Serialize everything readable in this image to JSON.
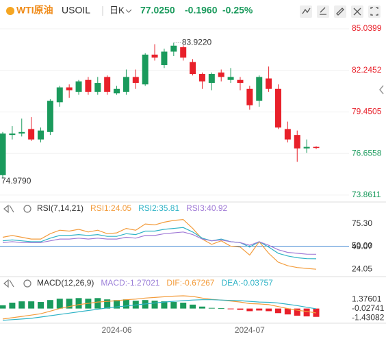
{
  "header": {
    "symbol_name": "WTI原油",
    "symbol": "USOIL",
    "period": "日K",
    "price": "77.0250",
    "change": "-0.1960",
    "change_pct": "-0.25%"
  },
  "chart_data": [
    {
      "type": "candlestick",
      "categories": [
        null,
        null,
        null,
        null,
        null,
        null,
        null,
        null,
        null,
        null,
        null,
        null,
        "2024-06",
        null,
        null,
        null,
        null,
        null,
        null,
        null,
        null,
        null,
        null,
        null,
        null,
        null,
        "2024-07",
        null,
        null,
        null,
        null,
        null,
        null,
        null
      ],
      "open": [
        75.2,
        77.9,
        78.0,
        78.3,
        77.6,
        78.1,
        80.1,
        81.1,
        80.8,
        81.6,
        80.8,
        81.8,
        80.7,
        80.8,
        81.8,
        81.3,
        83.3,
        82.6,
        83.5,
        83.8,
        82.8,
        82.0,
        81.4,
        82.1,
        81.6,
        81.6,
        81.0,
        80.2,
        81.7,
        81.0,
        78.3,
        77.9,
        77.0,
        77.1
      ],
      "high": [
        78.1,
        78.5,
        79.0,
        79.1,
        78.4,
        80.3,
        81.2,
        81.3,
        81.6,
        81.8,
        81.8,
        81.9,
        81.2,
        82.3,
        82.3,
        83.4,
        84.0,
        83.7,
        84.1,
        83.922,
        83.0,
        82.1,
        82.1,
        82.3,
        82.4,
        81.8,
        81.2,
        81.9,
        82.5,
        81.3,
        78.8,
        78.2,
        77.6,
        77.15
      ],
      "low": [
        74.979,
        77.6,
        77.8,
        77.5,
        77.4,
        77.9,
        79.8,
        80.4,
        80.6,
        80.6,
        80.6,
        80.6,
        80.6,
        80.6,
        81.0,
        81.2,
        82.9,
        82.4,
        83.2,
        82.9,
        81.9,
        81.0,
        80.9,
        81.5,
        81.4,
        80.9,
        79.6,
        79.8,
        80.8,
        78.3,
        77.4,
        76.1,
        76.7,
        76.95
      ],
      "close": [
        78.0,
        78.0,
        78.1,
        77.6,
        78.2,
        80.2,
        81.1,
        80.9,
        81.5,
        80.8,
        81.4,
        80.8,
        81.0,
        81.8,
        81.4,
        83.3,
        83.1,
        83.5,
        83.9,
        83.1,
        82.0,
        81.5,
        82.0,
        81.8,
        81.8,
        81.4,
        79.9,
        81.8,
        81.0,
        78.4,
        77.6,
        77.0,
        77.1,
        77.025
      ],
      "high_label": "83.9220",
      "low_label": "74.9790",
      "up_color": "#1a9a5c",
      "down_color": "#e8202a",
      "ylim": [
        73.49,
        85.59
      ],
      "yticks": [
        85.0399,
        82.2452,
        79.4505,
        76.6558,
        73.8611
      ],
      "grid": true
    },
    {
      "type": "line",
      "title": "RSI(7,14,21)",
      "series": [
        {
          "name": "RSI1:24.05",
          "color": "#f39c3c",
          "values": [
            60,
            62,
            60,
            58,
            58,
            64,
            68,
            67,
            69,
            66,
            68,
            64,
            65,
            70,
            68,
            75,
            74,
            77,
            79,
            80,
            70,
            58,
            52,
            56,
            50,
            49,
            40,
            55,
            42,
            32,
            28,
            26,
            25,
            24.05
          ]
        },
        {
          "name": "RSI2:35.81",
          "color": "#2fb3c6",
          "values": [
            56,
            57,
            56,
            55,
            55,
            59,
            62,
            62,
            63,
            62,
            63,
            61,
            61,
            64,
            63,
            67,
            67,
            69,
            70,
            71,
            66,
            59,
            56,
            58,
            55,
            54,
            49,
            55,
            49,
            42,
            39,
            37,
            36,
            35.81
          ]
        },
        {
          "name": "RSI3:40.92",
          "color": "#a07ad6",
          "values": [
            54,
            55,
            54,
            54,
            54,
            56,
            58,
            58,
            59,
            58,
            59,
            58,
            58,
            60,
            59,
            62,
            62,
            64,
            65,
            66,
            63,
            58,
            56,
            57,
            55,
            54,
            51,
            55,
            51,
            46,
            43,
            42,
            41,
            40.92
          ]
        }
      ],
      "ylim": [
        16.5,
        84.3
      ],
      "yticks": [
        {
          "value": 75.3,
          "label": "75.30"
        },
        {
          "value": 50,
          "label": "50.00"
        },
        49.07,
        24.05
      ],
      "reference_line": 50,
      "reference_color": "#3d86d1"
    },
    {
      "type": "macd",
      "title": "MACD(12,26,9)",
      "series": [
        {
          "name": "MACD:-1.27021",
          "color": "#9b7fd8",
          "values": [
            0.5,
            0.9,
            1.1,
            1.1,
            1.0,
            1.3,
            1.5,
            1.5,
            1.6,
            1.5,
            1.6,
            1.4,
            1.3,
            1.4,
            1.2,
            1.3,
            1.2,
            1.1,
            1.0,
            0.9,
            0.6,
            0.3,
            0.1,
            0.05,
            -0.05,
            -0.2,
            -0.4,
            -0.3,
            -0.4,
            -0.7,
            -0.9,
            -1.1,
            -1.2,
            -1.27021
          ]
        },
        {
          "name": "DIF:-0.67267",
          "color": "#f39c3c",
          "values": [
            -1.6,
            -1.4,
            -1.2,
            -1.0,
            -0.8,
            -0.4,
            0.0,
            0.3,
            0.6,
            0.8,
            1.0,
            1.1,
            1.2,
            1.35,
            1.45,
            1.6,
            1.7,
            1.8,
            1.9,
            1.95,
            1.85,
            1.6,
            1.4,
            1.3,
            1.15,
            1.0,
            0.75,
            0.7,
            0.6,
            0.3,
            0.0,
            -0.25,
            -0.45,
            -0.67267
          ]
        },
        {
          "name": "DEA:-0.03757",
          "color": "#2fb3c6",
          "values": [
            -1.8,
            -1.7,
            -1.6,
            -1.5,
            -1.3,
            -1.1,
            -0.9,
            -0.7,
            -0.5,
            -0.3,
            -0.1,
            0.1,
            0.25,
            0.4,
            0.55,
            0.7,
            0.85,
            1.0,
            1.1,
            1.2,
            1.3,
            1.35,
            1.35,
            1.3,
            1.25,
            1.2,
            1.1,
            1.0,
            0.95,
            0.85,
            0.65,
            0.45,
            0.2,
            -0.03757
          ]
        }
      ],
      "up_color": "#1a9a5c",
      "down_color": "#e8202a",
      "ylim": [
        -2.03,
        2.68
      ],
      "yticks": [
        1.37601,
        -0.02741,
        -1.43082
      ]
    }
  ]
}
